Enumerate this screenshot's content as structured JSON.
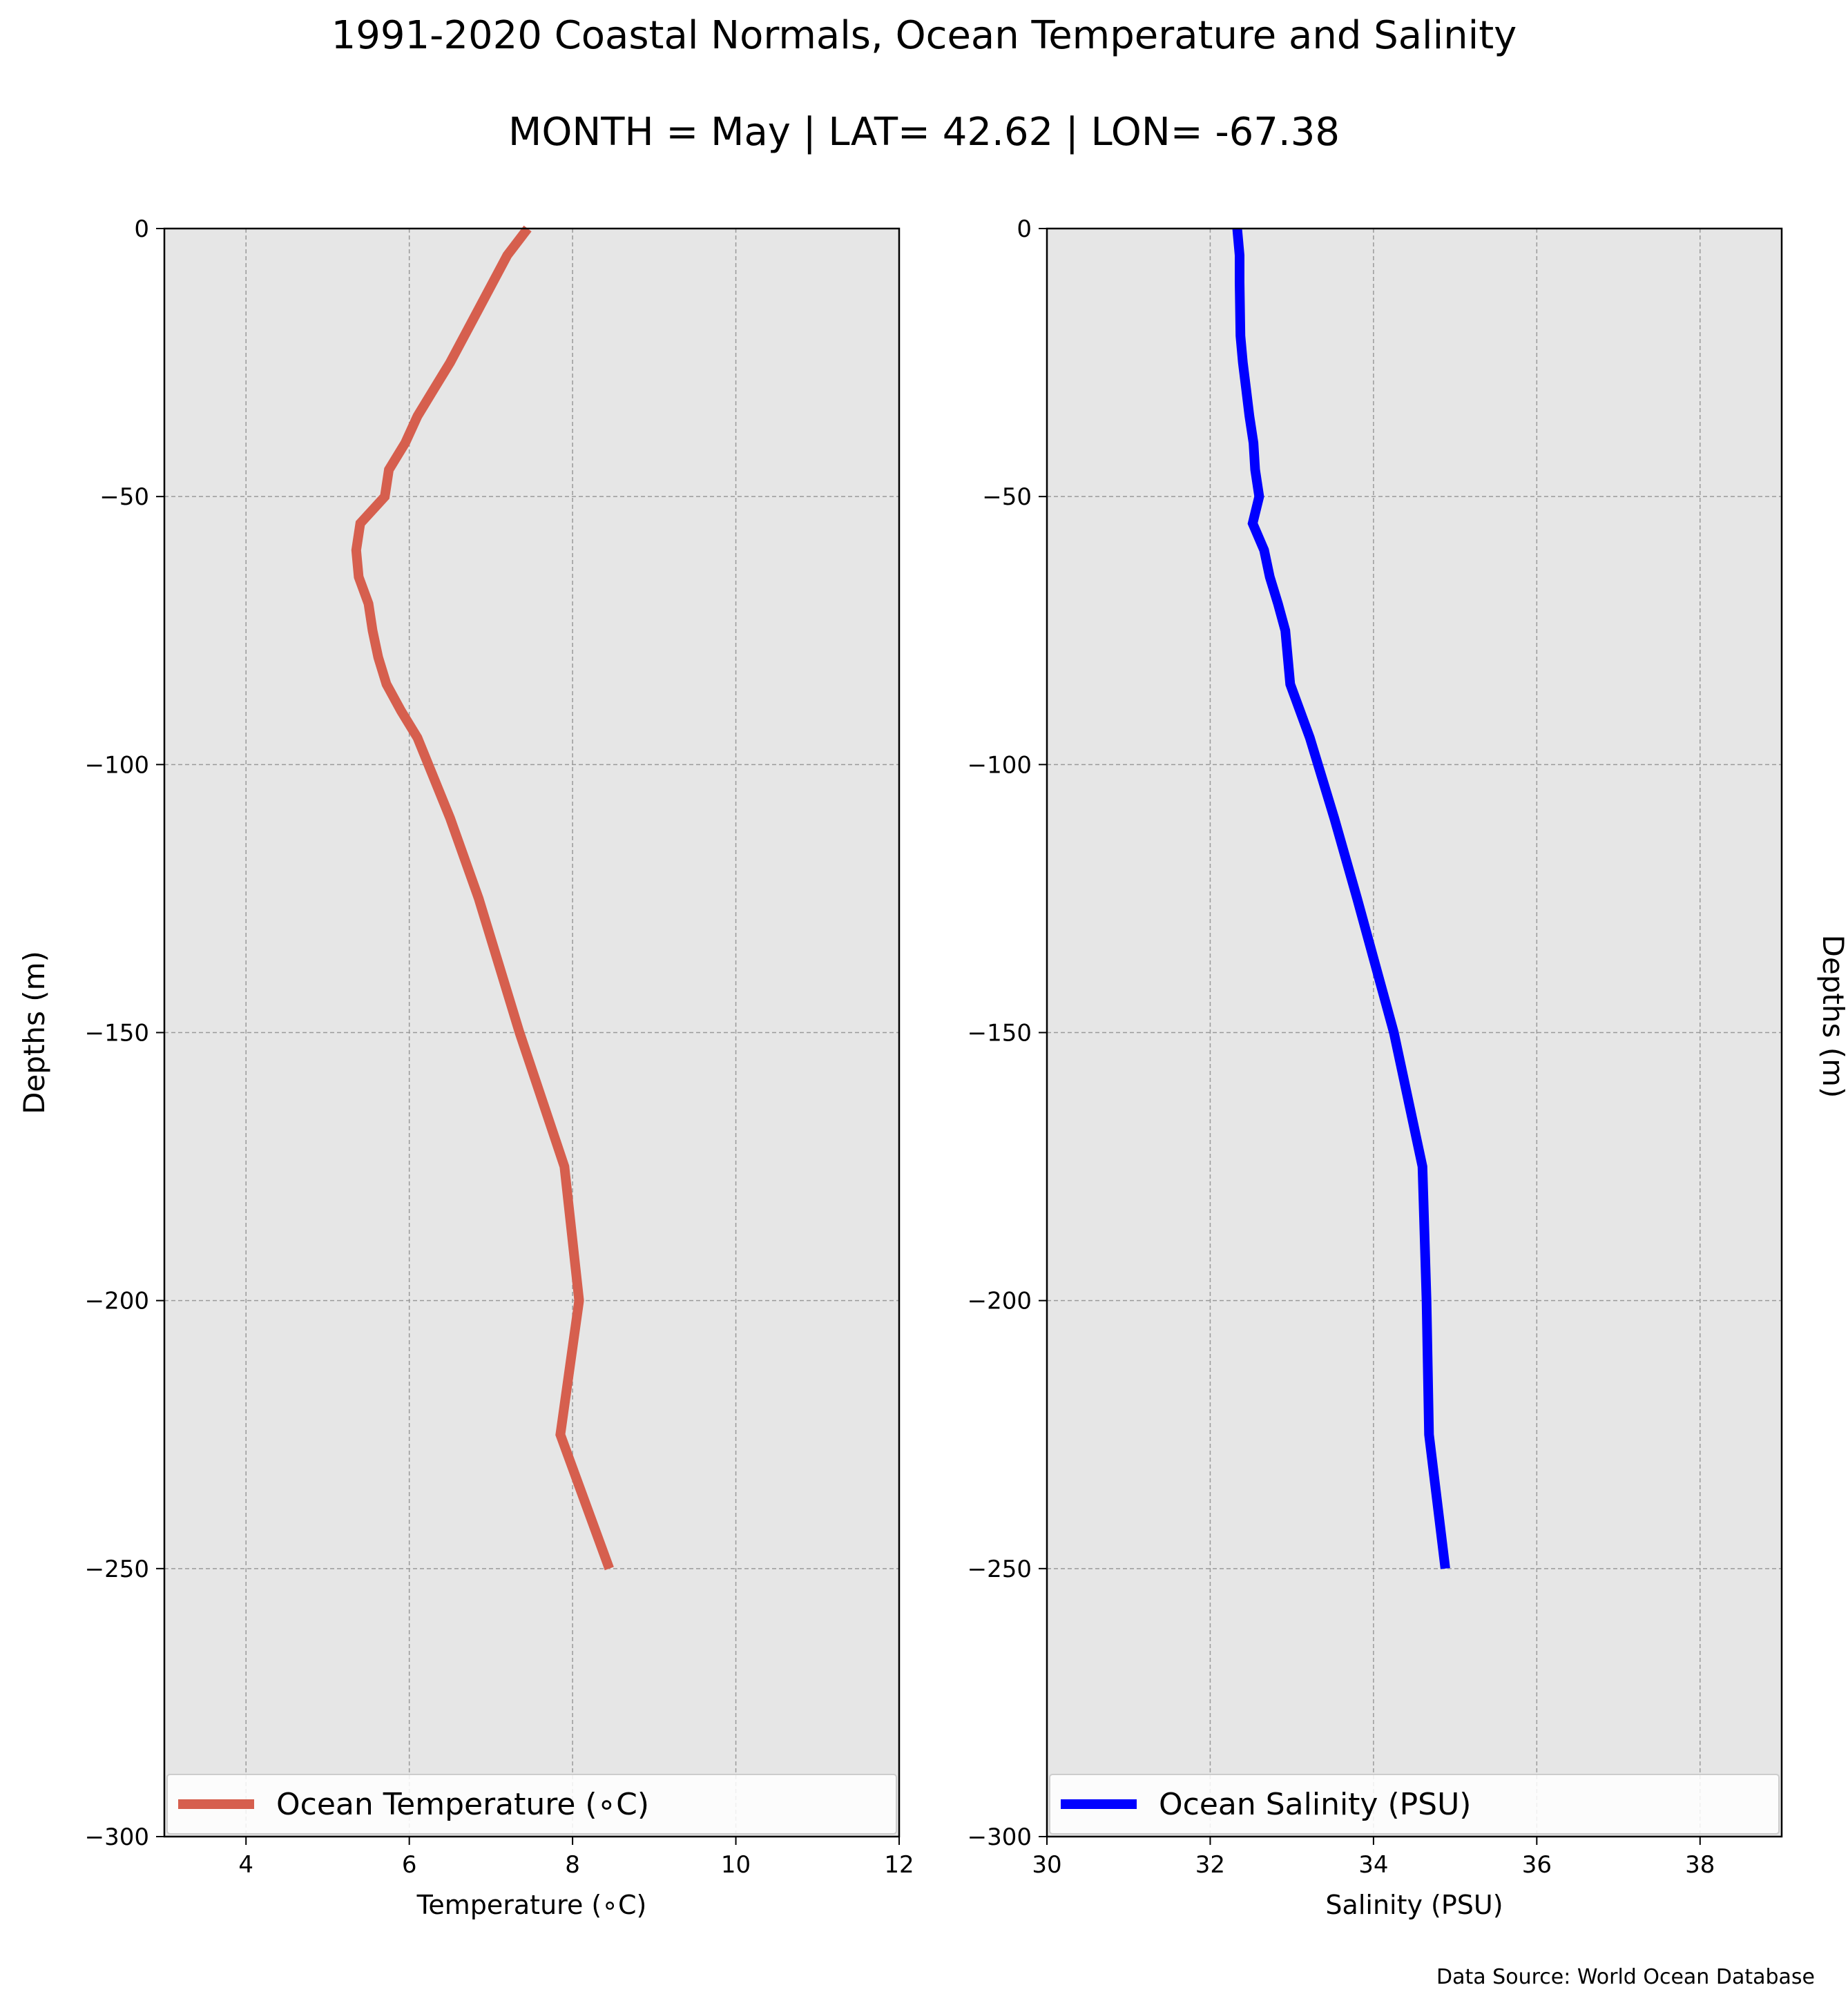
{
  "title": "1991-2020 Coastal Normals, Ocean Temperature and Salinity",
  "subtitle": "MONTH = May | LAT= 42.62 | LON= -67.38",
  "source": "Data Source: World Ocean Database",
  "chart_data": [
    {
      "type": "line",
      "xlabel": "Temperature ($^\\circ$C)",
      "xlabel_display": "Temperature (∘C)",
      "ylabel": "Depths (m)",
      "xlim": [
        3,
        12
      ],
      "ylim": [
        -300,
        0
      ],
      "xticks": [
        4,
        6,
        8,
        10,
        12
      ],
      "yticks": [
        0,
        -50,
        -100,
        -150,
        -200,
        -250,
        -300
      ],
      "grid": true,
      "legend_position": "lower center",
      "color": "#d65f4e",
      "series": [
        {
          "name": "Ocean Temperature (∘C)",
          "x": [
            7.45,
            7.2,
            6.85,
            6.5,
            6.3,
            6.1,
            5.95,
            5.75,
            5.7,
            5.4,
            5.35,
            5.38,
            5.5,
            5.55,
            5.62,
            5.72,
            5.9,
            6.1,
            6.5,
            6.85,
            7.35,
            7.9,
            8.08,
            7.85,
            8.45
          ],
          "y": [
            0,
            -5,
            -15,
            -25,
            -30,
            -35,
            -40,
            -45,
            -50,
            -55,
            -60,
            -65,
            -70,
            -75,
            -80,
            -85,
            -90,
            -95,
            -110,
            -125,
            -150,
            -175,
            -200,
            -225,
            -250
          ]
        }
      ]
    },
    {
      "type": "line",
      "xlabel": "Salinity (PSU)",
      "ylabel": "Depths (m)",
      "xlim": [
        30,
        39
      ],
      "ylim": [
        -300,
        0
      ],
      "xticks": [
        30,
        32,
        34,
        36,
        38
      ],
      "yticks": [
        0,
        -50,
        -100,
        -150,
        -200,
        -250,
        -300
      ],
      "grid": true,
      "legend_position": "lower center",
      "color": "#0000ff",
      "series": [
        {
          "name": "Ocean Salinity (PSU)",
          "x": [
            32.33,
            32.36,
            32.36,
            32.37,
            32.4,
            32.44,
            32.48,
            32.53,
            32.55,
            32.6,
            32.52,
            32.66,
            32.73,
            32.83,
            32.92,
            32.98,
            33.1,
            33.22,
            33.52,
            33.8,
            34.25,
            34.6,
            34.65,
            34.68,
            34.88
          ],
          "y": [
            0,
            -5,
            -10,
            -20,
            -25,
            -30,
            -35,
            -40,
            -45,
            -50,
            -55,
            -60,
            -65,
            -70,
            -75,
            -85,
            -90,
            -95,
            -110,
            -125,
            -150,
            -175,
            -200,
            -225,
            -250
          ]
        }
      ]
    }
  ]
}
